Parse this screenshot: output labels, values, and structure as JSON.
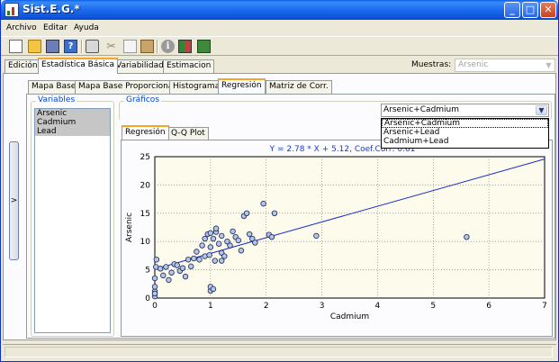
{
  "window": {
    "title": "Sist.E.G.*",
    "minimize": "_",
    "maximize": "□",
    "close": "✕"
  },
  "menu": [
    "Archivo",
    "Editar",
    "Ayuda"
  ],
  "toolbar_icons": [
    "new-icon",
    "open-icon",
    "save-icon",
    "help-icon",
    "print-icon",
    "cut-icon",
    "copy-icon",
    "paste-icon",
    "info-icon",
    "grid-icon",
    "exit-icon"
  ],
  "main_tabs": [
    "Edición",
    "Estadística Básica",
    "Variabilidad",
    "Estimacion"
  ],
  "main_tab_active": "Estadística Básica",
  "muestras": {
    "label": "Muestras:",
    "value": "Arsenic"
  },
  "expand_button": ">",
  "sub_tabs": [
    "Mapa Base",
    "Mapa Base Proporcional",
    "Histograma",
    "Regresión",
    "Matriz de Corr."
  ],
  "sub_tab_active": "Regresión",
  "variables": {
    "legend": "Variables",
    "items": [
      "Arsenic",
      "Cadmium",
      "Lead"
    ]
  },
  "graficos": {
    "legend": "Gráficos",
    "selected": "Arsenic+Cadmium",
    "options": [
      "Arsenic+Cadmium",
      "Arsenic+Lead",
      "Cadmium+Lead"
    ]
  },
  "plot_tabs": [
    "Regresión",
    "Q-Q Plot"
  ],
  "plot_tab_active": "Regresión",
  "chart_data": {
    "type": "scatter",
    "title": "Y = 2.78 * X + 5.12, Coef.Corr: 0.61",
    "xlabel": "Cadmium",
    "ylabel": "Arsenic",
    "xlim": [
      0,
      7
    ],
    "ylim": [
      0,
      25
    ],
    "xticks": [
      "0",
      "1",
      "2",
      "3",
      "4",
      "5",
      "6",
      "7"
    ],
    "yticks": [
      "0",
      "5",
      "10",
      "15",
      "20",
      "25"
    ],
    "grid": true,
    "regression": {
      "slope": 2.78,
      "intercept": 5.12
    },
    "points": [
      [
        0,
        0.3
      ],
      [
        0,
        1.2
      ],
      [
        0,
        2.0
      ],
      [
        0,
        3.5
      ],
      [
        0.02,
        5.5
      ],
      [
        0.03,
        6.8
      ],
      [
        0,
        0.8
      ],
      [
        0.1,
        5.2
      ],
      [
        0.15,
        4.0
      ],
      [
        0.2,
        5.5
      ],
      [
        0.25,
        3.2
      ],
      [
        0.3,
        4.5
      ],
      [
        0.35,
        6.0
      ],
      [
        0.4,
        5.8
      ],
      [
        0.45,
        4.8
      ],
      [
        0.5,
        5.3
      ],
      [
        0.55,
        3.8
      ],
      [
        0.6,
        6.8
      ],
      [
        0.65,
        5.6
      ],
      [
        0.7,
        7.0
      ],
      [
        0.75,
        8.2
      ],
      [
        0.8,
        6.8
      ],
      [
        0.85,
        9.3
      ],
      [
        0.9,
        7.4
      ],
      [
        0.9,
        10.5
      ],
      [
        0.95,
        11.3
      ],
      [
        1.0,
        11.5
      ],
      [
        1.0,
        9.0
      ],
      [
        1.05,
        10.5
      ],
      [
        1.1,
        11.7
      ],
      [
        1.1,
        12.3
      ],
      [
        1.15,
        9.6
      ],
      [
        1.2,
        11.0
      ],
      [
        1.2,
        8.0
      ],
      [
        1.25,
        7.4
      ],
      [
        1.3,
        10.0
      ],
      [
        1.35,
        9.3
      ],
      [
        1.4,
        11.8
      ],
      [
        1.45,
        10.8
      ],
      [
        1.5,
        10.2
      ],
      [
        1.55,
        8.4
      ],
      [
        1.6,
        14.5
      ],
      [
        1.65,
        15.0
      ],
      [
        1.7,
        11.3
      ],
      [
        1.75,
        10.5
      ],
      [
        1.8,
        9.8
      ],
      [
        1.95,
        16.7
      ],
      [
        2.05,
        11.2
      ],
      [
        2.1,
        10.8
      ],
      [
        2.15,
        15.0
      ],
      [
        1.0,
        1.3
      ],
      [
        1.0,
        2.0
      ],
      [
        1.05,
        1.6
      ],
      [
        0.98,
        7.6
      ],
      [
        1.08,
        6.6
      ],
      [
        1.2,
        6.6
      ],
      [
        2.9,
        11.0
      ],
      [
        5.6,
        10.8
      ]
    ]
  }
}
